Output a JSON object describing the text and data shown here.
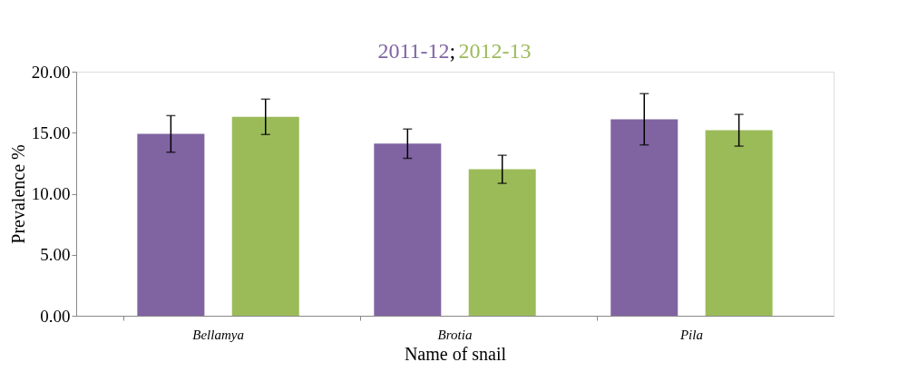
{
  "chart_data": {
    "type": "bar",
    "xlabel": "Name of snail",
    "ylabel": "Prevalence %",
    "categories": [
      "Bellamya",
      "Brotia",
      "Pila"
    ],
    "series": [
      {
        "name": "2011-12",
        "color": "#8064a2",
        "values": [
          14.9,
          14.1,
          16.1
        ],
        "errors": [
          1.5,
          1.2,
          2.1
        ]
      },
      {
        "name": "2012-13",
        "color": "#9bbb59",
        "values": [
          16.3,
          12.0,
          15.2
        ],
        "errors": [
          1.45,
          1.15,
          1.3
        ]
      }
    ],
    "ylim": [
      0,
      20
    ],
    "yticks": [
      {
        "value": 0,
        "label": "0.00"
      },
      {
        "value": 5,
        "label": "5.00"
      },
      {
        "value": 10,
        "label": "10.00"
      },
      {
        "value": 15,
        "label": "15.00"
      },
      {
        "value": 20,
        "label": "20.00"
      }
    ],
    "annotations": [
      ";"
    ],
    "legend": "top",
    "grid": false
  }
}
